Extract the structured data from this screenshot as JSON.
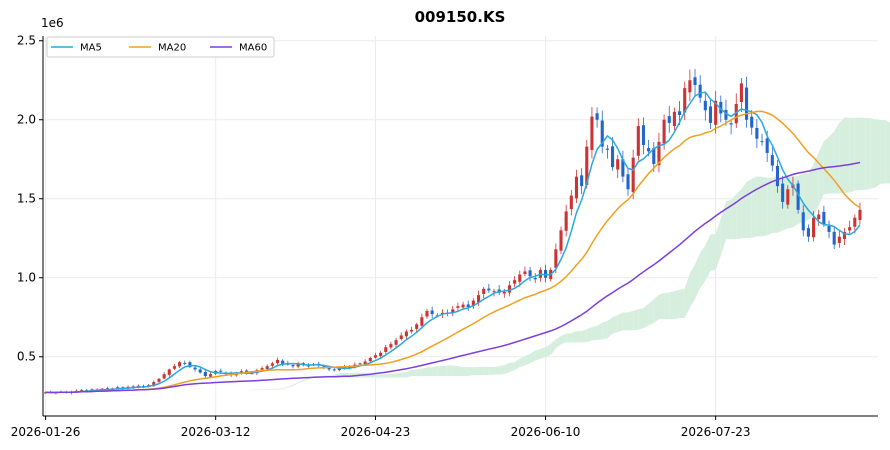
{
  "chart_data": {
    "type": "candlestick",
    "title": "009150.KS",
    "y_multiplier_label": "1e6",
    "x_tick_labels": [
      "2026-01-26",
      "2026-03-12",
      "2026-04-23",
      "2026-06-10",
      "2026-07-23"
    ],
    "x_ticks": [
      0,
      33,
      64,
      97,
      130
    ],
    "y_tick_labels": [
      "0.5",
      "1.0",
      "1.5",
      "2.0",
      "2.5"
    ],
    "y_ticks": [
      500000,
      1000000,
      1500000,
      2000000,
      2500000
    ],
    "xlim": [
      -0.5,
      161.5
    ],
    "ylim": [
      125000,
      2530000
    ],
    "grid": true,
    "legend_position": "top-left",
    "colors": {
      "up": "#cc3333",
      "down": "#2266cc",
      "ma5": "#29a8e0",
      "ma20": "#f0a020",
      "ma60": "#7b3fe0",
      "cloud_bull": "#d5eedd",
      "cloud_bear": "#fbd6d6"
    },
    "close": [
      275000,
      273000,
      275000,
      278000,
      273000,
      277000,
      285000,
      290000,
      280000,
      294000,
      292000,
      298000,
      290000,
      300000,
      307000,
      302000,
      309000,
      306000,
      316000,
      310000,
      320000,
      340000,
      360000,
      390000,
      420000,
      440000,
      465000,
      460000,
      435000,
      420000,
      400000,
      378000,
      390000,
      410000,
      405000,
      390000,
      384000,
      399000,
      408000,
      399000,
      396000,
      415000,
      428000,
      440000,
      458000,
      480000,
      455000,
      450000,
      440000,
      454000,
      450000,
      445000,
      452000,
      445000,
      430000,
      420000,
      419000,
      430000,
      432000,
      440000,
      450000,
      458000,
      470000,
      492000,
      510000,
      525000,
      560000,
      580000,
      605000,
      635000,
      660000,
      670000,
      705000,
      750000,
      790000,
      770000,
      760000,
      778000,
      780000,
      800000,
      820000,
      830000,
      815000,
      855000,
      890000,
      930000,
      920000,
      915000,
      905000,
      910000,
      952000,
      985000,
      1020000,
      1040000,
      1010000,
      990000,
      1050000,
      1000000,
      1050000,
      1180000,
      1300000,
      1420000,
      1520000,
      1640000,
      1580000,
      1830000,
      2020000,
      2000000,
      1830000,
      1810000,
      1700000,
      1750000,
      1640000,
      1560000,
      1760000,
      1960000,
      1840000,
      1800000,
      1720000,
      1860000,
      2000000,
      1980000,
      2050000,
      2030000,
      2200000,
      2250000,
      2220000,
      2140000,
      2060000,
      1980000,
      2120000,
      2040000,
      2000000,
      1970000,
      2100000,
      2230000,
      2000000,
      1950000,
      1880000,
      1860000,
      1790000,
      1710000,
      1580000,
      1480000,
      1560000,
      1590000,
      1430000,
      1300000,
      1260000,
      1380000,
      1400000,
      1340000,
      1290000,
      1210000,
      1260000,
      1290000,
      1320000,
      1380000,
      1430000
    ]
  },
  "legend": {
    "items": [
      {
        "label": "MA5",
        "color": "#29a8e0"
      },
      {
        "label": "MA20",
        "color": "#f0a020"
      },
      {
        "label": "MA60",
        "color": "#7b3fe0"
      }
    ]
  }
}
